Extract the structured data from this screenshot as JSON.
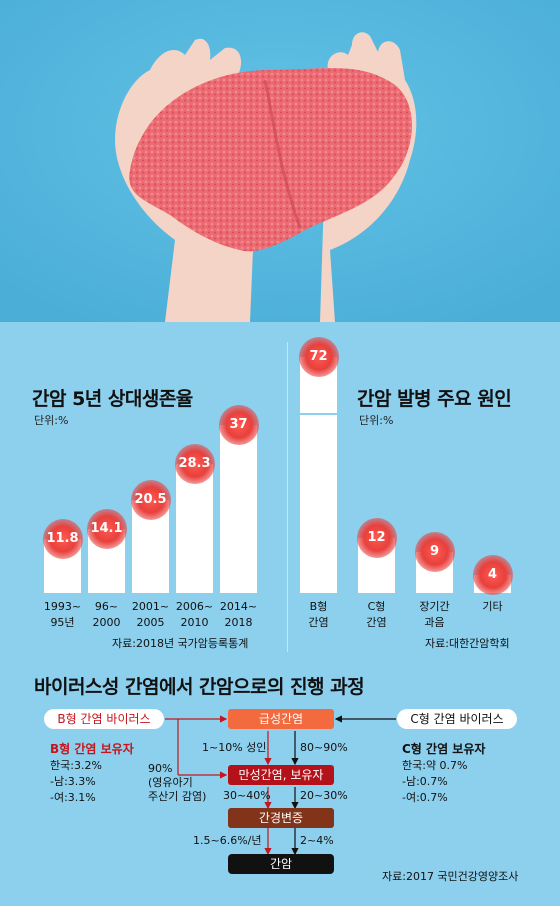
{
  "chart_data": [
    {
      "type": "bar",
      "title": "간암 5년 상대생존율",
      "unit": "단위:%",
      "categories": [
        [
          "1993~",
          "95년"
        ],
        [
          "96~",
          "2000"
        ],
        [
          "2001~",
          "2005"
        ],
        [
          "2006~",
          "2010"
        ],
        [
          "2014~",
          "2018"
        ]
      ],
      "values": [
        "11.8",
        "14.1",
        "20.5",
        "28.3",
        "37"
      ],
      "source": "자료:2018년 국가암등록통계"
    },
    {
      "type": "bar",
      "title": "간암 발병 주요 원인",
      "unit": "단위:%",
      "categories": [
        [
          "B형",
          "간염"
        ],
        [
          "C형",
          "간염"
        ],
        [
          "장기간",
          "과음"
        ],
        [
          "기타"
        ]
      ],
      "values": [
        "72",
        "12",
        "9",
        "4"
      ],
      "source": "자료:대한간암학회"
    }
  ],
  "flow": {
    "title": "바이러스성 간염에서 간암으로의 진행 과정",
    "hbv_virus": "B형 간염 바이러스",
    "hcv_virus": "C형 간염 바이러스",
    "acute": "급성간염",
    "chronic": "만성간염, 보유자",
    "cirrhosis": "간경변증",
    "cancer": "간암",
    "adult": "1~10% 성인",
    "p80_90": "80~90%",
    "p90": "90%",
    "p90_note1": "(영유아기",
    "p90_note2": "주산기 감염)",
    "p30_40": "30~40%",
    "p20_30": "20~30%",
    "p15_66": "1.5~6.6%/년",
    "p2_4": "2~4%",
    "hbv_carrier_title": "B형 간염 보유자",
    "hbv_carrier": [
      "한국:3.2%",
      "-남:3.3%",
      "-여:3.1%"
    ],
    "hcv_carrier_title": "C형 간염 보유자",
    "hcv_carrier": [
      "한국:약 0.7%",
      "-남:0.7%",
      "-여:0.7%"
    ],
    "source": "자료:2017 국민건강영양조사"
  },
  "colors": {
    "background": "#8dd0ee",
    "photo_bg": "#58b8df",
    "bubble": "#e8403c",
    "acute": "#f26a3e",
    "chronic": "#b3121b",
    "cirrhosis": "#82341a",
    "hbv_red": "#c4161c"
  }
}
